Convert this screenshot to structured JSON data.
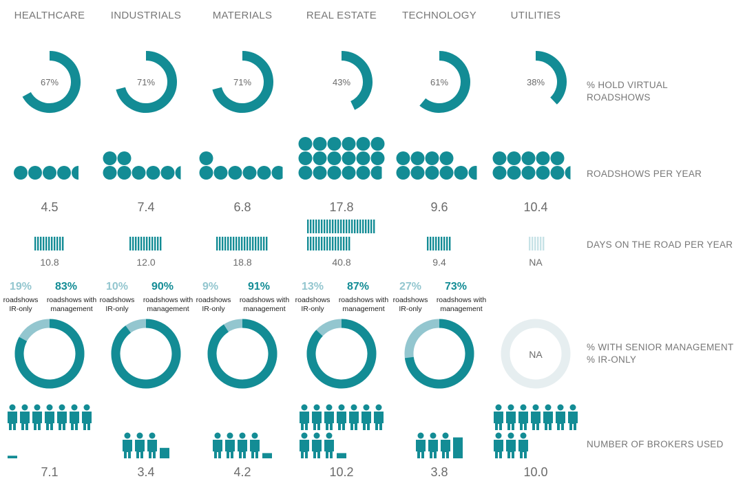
{
  "colors": {
    "teal": "#138c95",
    "light_teal": "#93c6cf",
    "na_gray": "#e6eef0",
    "text": "#777777"
  },
  "sectors": [
    "HEALTHCARE",
    "INDUSTRIALS",
    "MATERIALS",
    "REAL ESTATE",
    "TECHNOLOGY",
    "UTILITIES"
  ],
  "row_labels": {
    "virtual": "% HOLD VIRTUAL ROADSHOWS",
    "roadshows": "ROADSHOWS PER YEAR",
    "days": "DAYS ON THE ROAD PER YEAR",
    "mgmt_line1": "% WITH SENIOR MANAGEMENT",
    "mgmt_line2": "% IR-ONLY",
    "brokers": "NUMBER OF BROKERS USED"
  },
  "captions": {
    "ir_only": [
      "roadshows",
      "IR-only"
    ],
    "with_mgmt": [
      "roadshows with",
      "management"
    ]
  },
  "chart_data": {
    "type": "infographic",
    "categories": [
      "HEALTHCARE",
      "INDUSTRIALS",
      "MATERIALS",
      "REAL ESTATE",
      "TECHNOLOGY",
      "UTILITIES"
    ],
    "virtual_roadshows_pct": {
      "values": [
        67,
        71,
        71,
        43,
        61,
        38
      ],
      "labels": [
        "67%",
        "71%",
        "71%",
        "43%",
        "61%",
        "38%"
      ]
    },
    "roadshows_per_year": {
      "values": [
        4.5,
        7.4,
        6.8,
        17.8,
        9.6,
        10.4
      ],
      "labels": [
        "4.5",
        "7.4",
        "6.8",
        "17.8",
        "9.6",
        "10.4"
      ]
    },
    "days_on_road_per_year": {
      "values": [
        10.8,
        12.0,
        18.8,
        40.8,
        9.4,
        null
      ],
      "labels": [
        "10.8",
        "12.0",
        "18.8",
        "40.8",
        "9.4",
        "NA"
      ]
    },
    "ir_only_pct": {
      "values": [
        19,
        10,
        9,
        13,
        27,
        null
      ],
      "labels": [
        "19%",
        "10%",
        "9%",
        "13%",
        "27%",
        ""
      ]
    },
    "with_management_pct": {
      "values": [
        83,
        90,
        91,
        87,
        73,
        null
      ],
      "labels": [
        "83%",
        "90%",
        "91%",
        "87%",
        "73%",
        "NA"
      ]
    },
    "brokers_used": {
      "values": [
        7.1,
        3.4,
        4.2,
        10.2,
        3.8,
        10.0
      ],
      "labels": [
        "7.1",
        "3.4",
        "4.2",
        "10.2",
        "3.8",
        "10.0"
      ]
    }
  }
}
